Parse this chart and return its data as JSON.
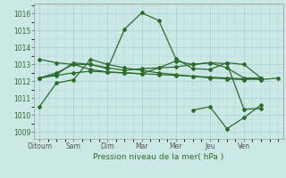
{
  "bg_color": "#cce8e6",
  "grid_color": "#aad4d0",
  "line_color": "#2d6b2d",
  "title": "Pression niveau de la mer( hPa )",
  "xlabel_days": [
    "Ditoum",
    "Sam",
    "Dim",
    "Mar",
    "Mer",
    "Jeu",
    "Ven"
  ],
  "yticks": [
    1009,
    1010,
    1011,
    1012,
    1013,
    1014,
    1015,
    1016
  ],
  "ylim": [
    1008.6,
    1016.6
  ],
  "series": [
    {
      "x": [
        0,
        1,
        2,
        3,
        4,
        5,
        6,
        7,
        8,
        9,
        10,
        11,
        12,
        13
      ],
      "y": [
        1010.5,
        1011.9,
        1012.1,
        1013.3,
        1013.0,
        1012.8,
        1012.65,
        1012.5,
        1012.4,
        1012.3,
        1012.2,
        1012.15,
        1012.1,
        1012.2
      ]
    },
    {
      "x": [
        0,
        1,
        2,
        3,
        4,
        5,
        6,
        7,
        8,
        9,
        10,
        11,
        12,
        13
      ],
      "y": [
        1013.3,
        1013.1,
        1013.0,
        1013.0,
        1012.75,
        1015.1,
        1016.05,
        1015.6,
        1013.35,
        1012.75,
        1012.7,
        1013.1,
        1013.0,
        1012.2
      ]
    },
    {
      "x": [
        0,
        1,
        2,
        3,
        4,
        5,
        6,
        7,
        8,
        9,
        10,
        11,
        12,
        13
      ],
      "y": [
        1012.2,
        1012.4,
        1013.1,
        1013.0,
        1012.8,
        1012.65,
        1012.75,
        1012.8,
        1012.85,
        1013.0,
        1013.1,
        1012.8,
        1012.2,
        1012.2
      ]
    },
    {
      "x": [
        0,
        1,
        2,
        3,
        4,
        5,
        6,
        7,
        8,
        9,
        10,
        11,
        12,
        13
      ],
      "y": [
        1012.2,
        1012.5,
        1013.0,
        1012.7,
        1012.55,
        1012.5,
        1012.45,
        1012.8,
        1013.2,
        1013.0,
        1013.1,
        1013.05,
        1010.35,
        1010.4
      ]
    },
    {
      "x": [
        0,
        1,
        2,
        3,
        4,
        5,
        6,
        7,
        8,
        9,
        10,
        11,
        12,
        13,
        14
      ],
      "y": [
        1012.2,
        1012.35,
        1012.5,
        1012.6,
        1012.55,
        1012.5,
        1012.45,
        1012.4,
        1012.35,
        1012.3,
        1012.25,
        1012.2,
        1012.15,
        1012.1,
        1012.2
      ]
    },
    {
      "x": [
        9,
        10,
        11,
        12,
        13
      ],
      "y": [
        1010.3,
        1010.5,
        1009.2,
        1009.85,
        1010.6
      ]
    }
  ],
  "x_tick_positions": [
    0,
    2,
    4,
    6,
    8,
    10,
    12
  ],
  "xlim": [
    -0.3,
    14.3
  ],
  "n_points": 15
}
